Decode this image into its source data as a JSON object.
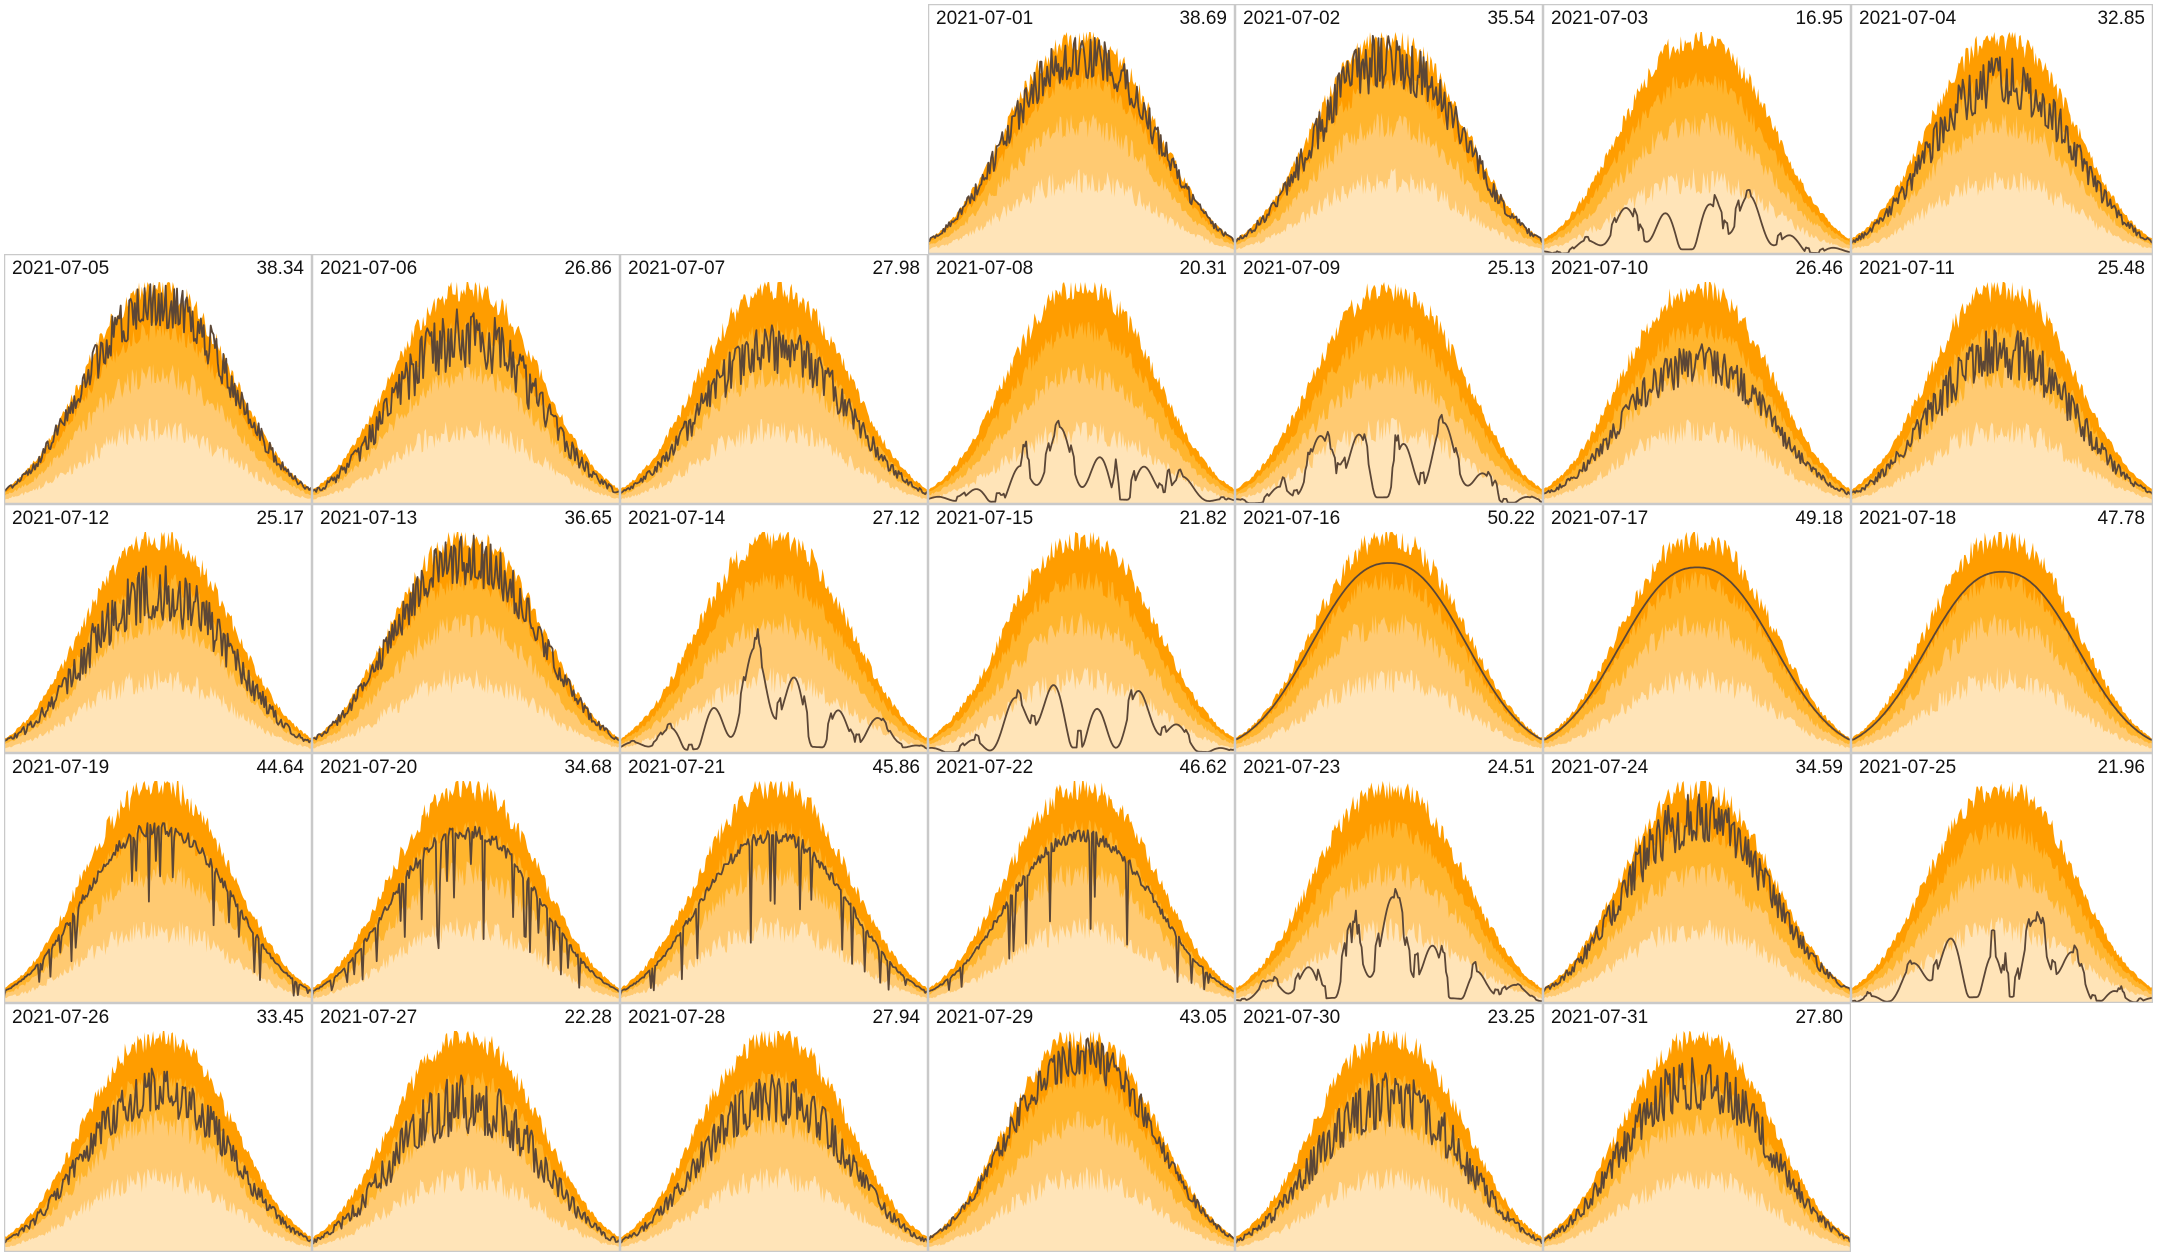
{
  "chart_data": {
    "type": "area",
    "layout": "calendar small multiples, 7 columns, Monday first",
    "x_domain": [
      "04:00",
      "21:00"
    ],
    "series_names": [],
    "colors": {
      "band_light": "#ffe4b8",
      "band_mid": "#ffca72",
      "band_dark": "#ffb52e",
      "band_max": "#ff9d00",
      "actual_line": "#5b4636",
      "low_marker": "#ff5a1f",
      "cell_border": "#c9c9c9"
    },
    "days": [
      {
        "date": "2021-07-01",
        "total": "38.69",
        "pattern": "clouds",
        "level": 0.92,
        "vol": 0.45
      },
      {
        "date": "2021-07-02",
        "total": "35.54",
        "pattern": "clouds",
        "level": 0.9,
        "vol": 0.55
      },
      {
        "date": "2021-07-03",
        "total": "16.95",
        "pattern": "cloudy",
        "level": 0.42,
        "vol": 0.6
      },
      {
        "date": "2021-07-04",
        "total": "32.85",
        "pattern": "clouds",
        "level": 0.8,
        "vol": 0.55
      },
      {
        "date": "2021-07-05",
        "total": "38.34",
        "pattern": "clouds",
        "level": 0.92,
        "vol": 0.5
      },
      {
        "date": "2021-07-06",
        "total": "26.86",
        "pattern": "clouds",
        "level": 0.78,
        "vol": 0.7
      },
      {
        "date": "2021-07-07",
        "total": "27.98",
        "pattern": "clouds",
        "level": 0.72,
        "vol": 0.6
      },
      {
        "date": "2021-07-08",
        "total": "20.31",
        "pattern": "cloudy",
        "level": 0.45,
        "vol": 0.65
      },
      {
        "date": "2021-07-09",
        "total": "25.13",
        "pattern": "cloudy",
        "level": 0.6,
        "vol": 0.45
      },
      {
        "date": "2021-07-10",
        "total": "26.46",
        "pattern": "clouds",
        "level": 0.65,
        "vol": 0.55
      },
      {
        "date": "2021-07-11",
        "total": "25.48",
        "pattern": "clouds",
        "level": 0.7,
        "vol": 0.65
      },
      {
        "date": "2021-07-12",
        "total": "25.17",
        "pattern": "clouds",
        "level": 0.75,
        "vol": 0.7
      },
      {
        "date": "2021-07-13",
        "total": "36.65",
        "pattern": "clouds",
        "level": 0.9,
        "vol": 0.5
      },
      {
        "date": "2021-07-14",
        "total": "27.12",
        "pattern": "cloudy",
        "level": 0.62,
        "vol": 0.4
      },
      {
        "date": "2021-07-15",
        "total": "21.82",
        "pattern": "cloudy",
        "level": 0.5,
        "vol": 0.55
      },
      {
        "date": "2021-07-16",
        "total": "50.22",
        "pattern": "clear",
        "level": 0.86,
        "vol": 0.0
      },
      {
        "date": "2021-07-17",
        "total": "49.18",
        "pattern": "clear",
        "level": 0.84,
        "vol": 0.0
      },
      {
        "date": "2021-07-18",
        "total": "47.78",
        "pattern": "clear",
        "level": 0.82,
        "vol": 0.0
      },
      {
        "date": "2021-07-19",
        "total": "44.64",
        "pattern": "mostly",
        "level": 0.82,
        "vol": 0.22
      },
      {
        "date": "2021-07-20",
        "total": "34.68",
        "pattern": "mostly",
        "level": 0.8,
        "vol": 0.35
      },
      {
        "date": "2021-07-21",
        "total": "45.86",
        "pattern": "mostly",
        "level": 0.78,
        "vol": 0.18
      },
      {
        "date": "2021-07-22",
        "total": "46.62",
        "pattern": "mostly",
        "level": 0.78,
        "vol": 0.15
      },
      {
        "date": "2021-07-23",
        "total": "24.51",
        "pattern": "cloudy",
        "level": 0.6,
        "vol": 0.6
      },
      {
        "date": "2021-07-24",
        "total": "34.59",
        "pattern": "clouds",
        "level": 0.85,
        "vol": 0.55
      },
      {
        "date": "2021-07-25",
        "total": "21.96",
        "pattern": "cloudy",
        "level": 0.55,
        "vol": 0.6
      },
      {
        "date": "2021-07-26",
        "total": "33.45",
        "pattern": "clouds",
        "level": 0.75,
        "vol": 0.55
      },
      {
        "date": "2021-07-27",
        "total": "22.28",
        "pattern": "clouds",
        "level": 0.7,
        "vol": 0.75
      },
      {
        "date": "2021-07-28",
        "total": "27.94",
        "pattern": "clouds",
        "level": 0.72,
        "vol": 0.6
      },
      {
        "date": "2021-07-29",
        "total": "43.05",
        "pattern": "clouds",
        "level": 0.9,
        "vol": 0.4
      },
      {
        "date": "2021-07-30",
        "total": "23.25",
        "pattern": "clouds",
        "level": 0.72,
        "vol": 0.7
      },
      {
        "date": "2021-07-31",
        "total": "27.80",
        "pattern": "clouds",
        "level": 0.8,
        "vol": 0.6
      }
    ]
  }
}
